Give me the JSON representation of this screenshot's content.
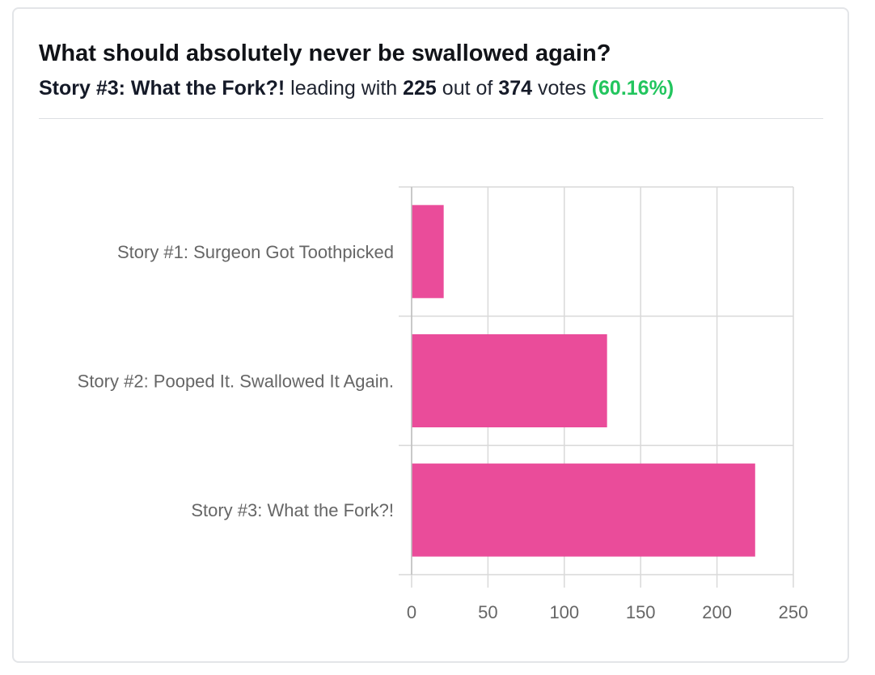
{
  "header": {
    "title": "What should absolutely never be swallowed again?",
    "leader_name": "Story #3: What the Fork?!",
    "leading_with_text": "leading with",
    "leader_votes": "225",
    "out_of_text": "out of",
    "total_votes": "374",
    "votes_text": "votes",
    "leader_percent": "(60.16%)"
  },
  "colors": {
    "bar": "#ea4c9a",
    "percent": "#22c55e",
    "grid": "#d9d9d9",
    "tick_label": "#666666"
  },
  "chart_data": {
    "type": "bar",
    "orientation": "horizontal",
    "categories": [
      "Story #1: Surgeon Got Toothpicked",
      "Story #2: Pooped It. Swallowed It Again.",
      "Story #3: What the Fork?!"
    ],
    "values": [
      21,
      128,
      225
    ],
    "xlim": [
      0,
      250
    ],
    "x_ticks": [
      0,
      50,
      100,
      150,
      200,
      250
    ],
    "grid": true,
    "legend": "none"
  }
}
